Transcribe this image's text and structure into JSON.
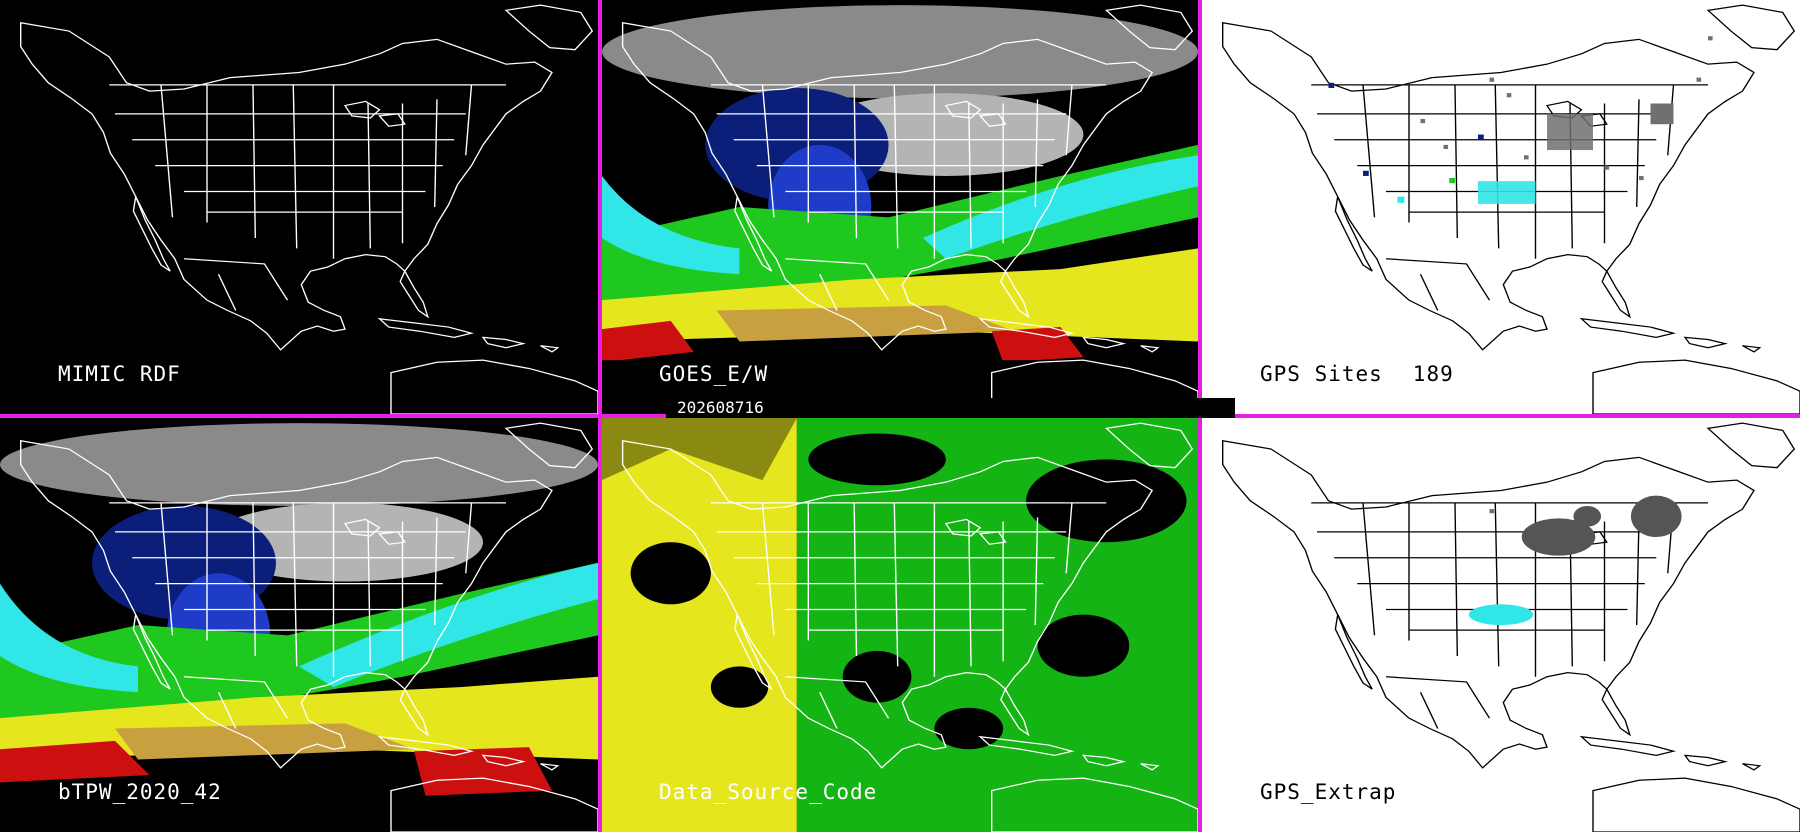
{
  "timestamp": "202608716",
  "panels": [
    {
      "id": "mimic",
      "label": "MIMIC RDF",
      "count": ""
    },
    {
      "id": "goes",
      "label": "GOES_E/W",
      "count": ""
    },
    {
      "id": "gps-sites",
      "label": "GPS Sites",
      "count": "189"
    },
    {
      "id": "btpw",
      "label": "bTPW_2020_42",
      "count": ""
    },
    {
      "id": "source",
      "label": "Data_Source_Code",
      "count": ""
    },
    {
      "id": "gps-extrap",
      "label": "GPS_Extrap",
      "count": ""
    }
  ],
  "colors": {
    "divider": "#e61ee6",
    "gray": "#a0a0a0",
    "dark_blue": "#0a1e7a",
    "blue": "#1e3cc8",
    "cyan": "#30e6e6",
    "green": "#1fc81f",
    "yellow": "#e6e61e",
    "tan": "#c8a040",
    "red": "#cc1010",
    "site_gray": "#707070"
  }
}
